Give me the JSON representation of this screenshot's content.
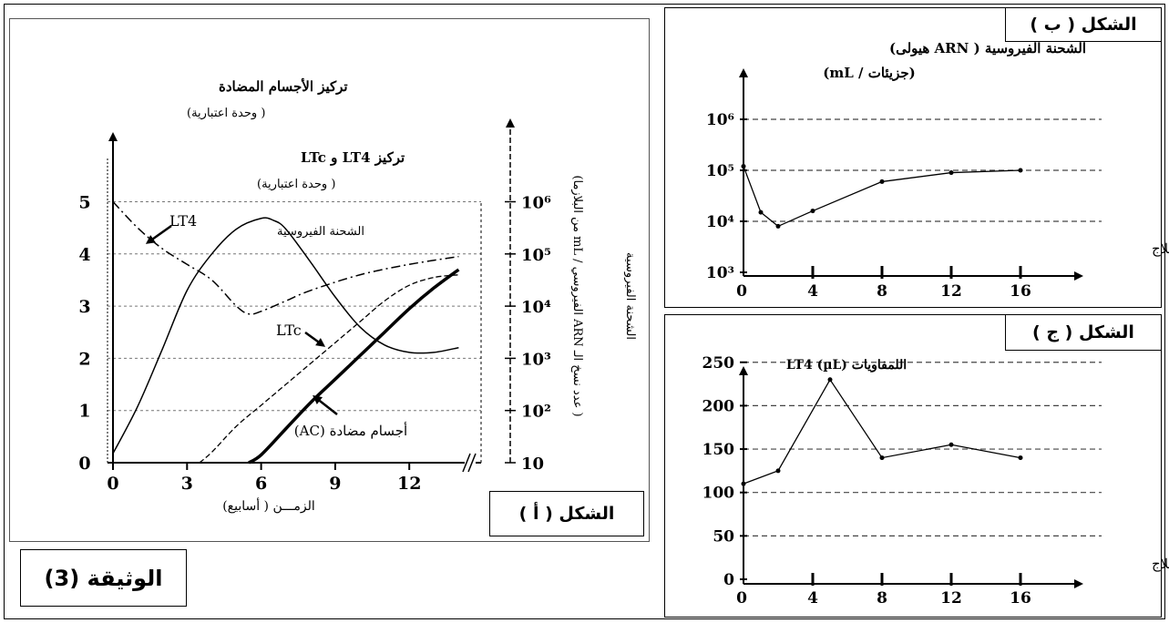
{
  "document_label": "الوثيقة (3)",
  "panel_a": {
    "figure_label": "الشكل ( أ )",
    "left_axis_label_line1": "تركيز الأجسام المضادة",
    "left_axis_label_line2": "( وحدة اعتبارية)",
    "lt_axis_label_line1": "تركيز LT4 و LTc",
    "lt_axis_label_line2": "( وحدة اعتبارية)",
    "right_axis_label": "( عدد نسخ الـ ARN الفيروسي / mL من البلازما)",
    "right_axis_title": "الشحنة الفيروسية",
    "xlabel": "الزمـــن ( أسابيع)",
    "annotation_lt4": "LT4",
    "annotation_ltc": "LTc",
    "annotation_viral": "الشحنة الفيروسية",
    "annotation_ac": "أجسام مضادة (AC)",
    "left_ticks": [
      "0",
      "1",
      "2",
      "3",
      "4",
      "5"
    ],
    "x_ticks": [
      "0",
      "3",
      "6",
      "9",
      "12"
    ],
    "right_ticks": [
      "10",
      "10²",
      "10³",
      "10⁴",
      "10⁵",
      "10⁶"
    ]
  },
  "panel_b": {
    "figure_label": "الشكل ( ب )",
    "ylabel_line1": "الشحنة الفيروسية ( ARN هيولى)",
    "ylabel_line2": "(جزيئات / mL)",
    "xlabel": "أسابيع العلاج",
    "y_ticks": [
      "10³",
      "10⁴",
      "10⁵",
      "10⁶"
    ],
    "x_ticks": [
      "0",
      "4",
      "8",
      "12",
      "16"
    ]
  },
  "panel_c": {
    "figure_label": "الشكل ( ج )",
    "ylabel": "اللمفاويات LT4 (µL)",
    "xlabel": "أسابيع العلاج",
    "y_ticks": [
      "0",
      "50",
      "100",
      "150",
      "200",
      "250"
    ],
    "x_ticks": [
      "0",
      "4",
      "8",
      "12",
      "16"
    ]
  },
  "chart_data": [
    {
      "type": "line",
      "x_unit": "weeks",
      "xlim": [
        0,
        14
      ],
      "ylim": [
        0,
        5
      ],
      "y_right_scale": "log",
      "y_right_lim": [
        10,
        1000000
      ],
      "series": [
        {
          "name": "LT4",
          "line_style": "dash-dot",
          "axis": "left",
          "x": [
            0,
            1,
            2,
            3,
            4,
            5,
            5.5,
            6,
            7,
            8,
            10,
            12,
            14
          ],
          "y": [
            5,
            4.5,
            4.1,
            3.8,
            3.5,
            3.0,
            2.85,
            2.9,
            3.1,
            3.3,
            3.6,
            3.8,
            3.95
          ]
        },
        {
          "name": "LTc",
          "line_style": "dashed",
          "axis": "left",
          "x": [
            3.5,
            4,
            5,
            6,
            7,
            8,
            9,
            10,
            11,
            12,
            13,
            14
          ],
          "y": [
            0,
            0.2,
            0.7,
            1.1,
            1.5,
            1.9,
            2.3,
            2.7,
            3.1,
            3.4,
            3.55,
            3.6
          ]
        },
        {
          "name": "الشحنة الفيروسية",
          "line_style": "solid",
          "axis": "right",
          "x": [
            0,
            1,
            2,
            3,
            4,
            5,
            6,
            6.5,
            7,
            8,
            9,
            10,
            11,
            12,
            13,
            14
          ],
          "y": [
            15,
            120,
            1500,
            20000,
            100000,
            300000,
            480000,
            440000,
            300000,
            70000,
            15000,
            4000,
            1800,
            1300,
            1300,
            1600
          ]
        },
        {
          "name": "أجسام مضادة (AC)",
          "line_style": "bold",
          "axis": "left",
          "x": [
            5.5,
            6,
            7,
            8,
            9,
            10,
            11,
            12,
            13,
            14
          ],
          "y": [
            0,
            0.15,
            0.65,
            1.15,
            1.6,
            2.05,
            2.5,
            2.95,
            3.35,
            3.7
          ]
        }
      ]
    },
    {
      "type": "line",
      "xlabel": "أسابيع العلاج",
      "ylabel": "الشحنة الفيروسية ( ARN هيولى)",
      "y_scale": "log",
      "ylim": [
        1000,
        1000000
      ],
      "xlim": [
        0,
        16
      ],
      "series": [
        {
          "x": [
            0,
            1,
            2,
            4,
            8,
            12,
            16
          ],
          "y": [
            120000,
            15000,
            8000,
            16000,
            60000,
            90000,
            100000
          ]
        }
      ]
    },
    {
      "type": "line",
      "xlabel": "أسابيع العلاج",
      "ylabel": "اللمفاويات LT4 (µL)",
      "ylim": [
        0,
        250
      ],
      "xlim": [
        0,
        16
      ],
      "series": [
        {
          "x": [
            0,
            2,
            5,
            8,
            12,
            16
          ],
          "y": [
            110,
            125,
            230,
            140,
            155,
            140
          ]
        }
      ]
    }
  ]
}
